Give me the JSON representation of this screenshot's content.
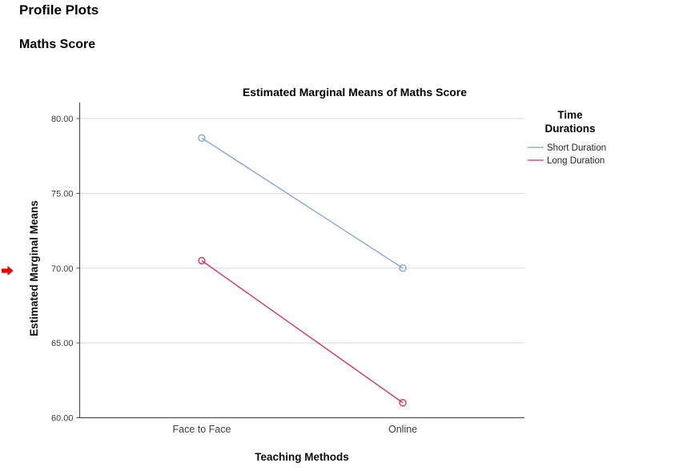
{
  "page": {
    "heading_primary": "Profile Plots",
    "heading_secondary": "Maths Score"
  },
  "icons": {
    "selection_arrow_color": "#EE0000"
  },
  "chart_data": {
    "type": "line",
    "title": "Estimated Marginal Means of Maths Score",
    "xlabel": "Teaching Methods",
    "ylabel": "Estimated Marginal Means",
    "categories": [
      "Face to Face",
      "Online"
    ],
    "series": [
      {
        "name": "Short Duration",
        "color": "#7CA1D8",
        "values": [
          78.7,
          70.0
        ]
      },
      {
        "name": "Long Duration",
        "color": "#DC2A5A",
        "values": [
          70.5,
          61.0
        ]
      }
    ],
    "legend_title": "Time Durations",
    "legend_position": "right",
    "yticks": [
      60,
      65,
      70,
      75,
      80
    ],
    "ytick_labels": [
      "60.00",
      "65.00",
      "70.00",
      "75.00",
      "80.00"
    ],
    "ylim": [
      60,
      81.1
    ],
    "grid": "horizontal",
    "marker": "open-circle",
    "colors": {
      "gridline": "#D8D8D8",
      "axis": "#4F4F4F",
      "tick_text": "#3D3D3D"
    }
  }
}
